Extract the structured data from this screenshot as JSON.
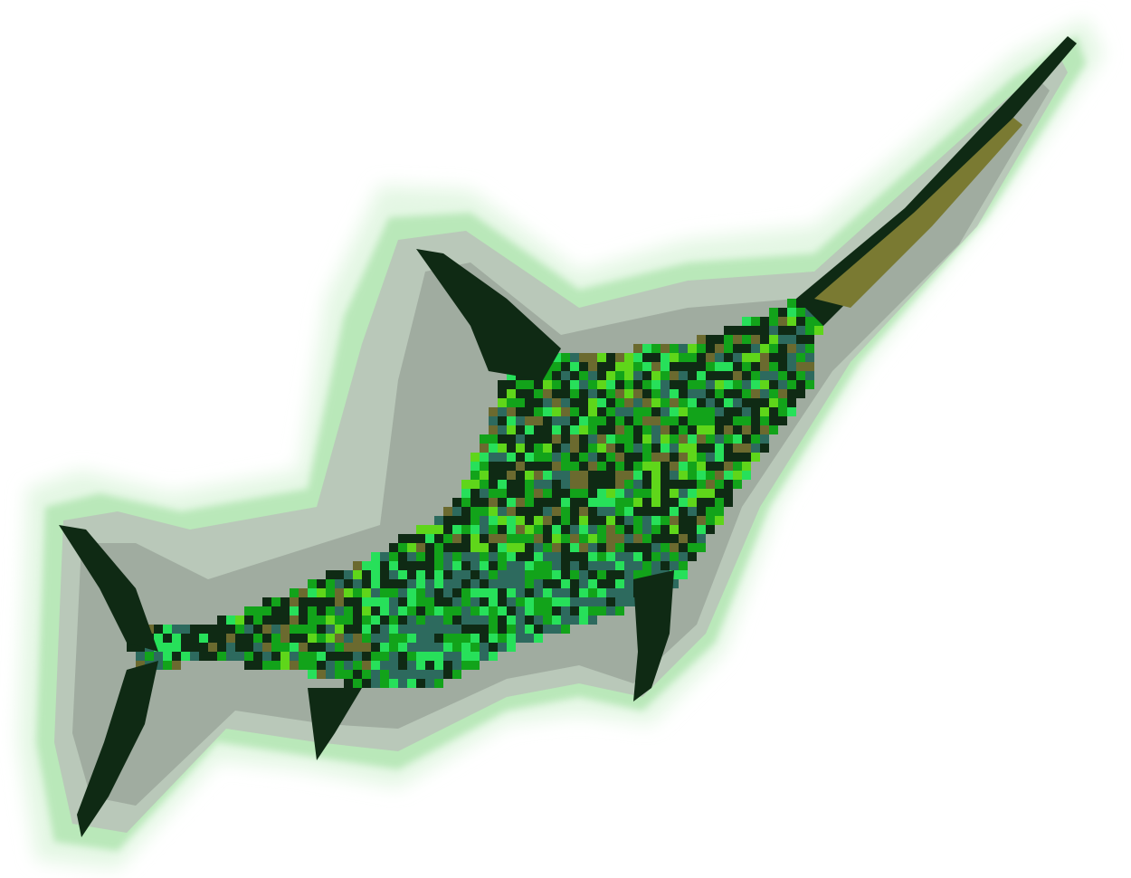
{
  "subject": "pixelated-marlin-fish",
  "palette": {
    "background": "#ffffff",
    "halo_light": "#e4f7e4",
    "halo_mid": "#b9e8b9",
    "halo_grey": "#b8c2b8",
    "halo_grey_dark": "#8f9a8f",
    "body_dark": "#0f2a14",
    "body_olive": "#6b6a2f",
    "body_teal": "#2d6a5e",
    "body_green": "#12a31a",
    "body_lime": "#5fd61a",
    "body_mint": "#27e05a",
    "spear_olive": "#7a7a32"
  }
}
